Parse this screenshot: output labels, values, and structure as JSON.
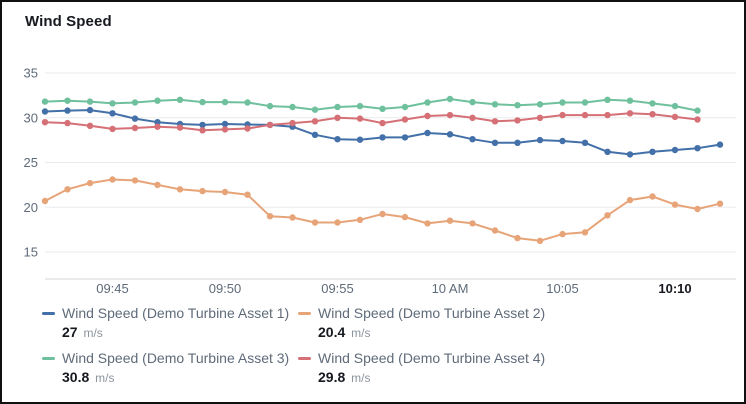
{
  "chart_data": {
    "type": "line",
    "title": "Wind Speed",
    "unit": "m/s",
    "x_start": "09:42",
    "x_interval_minutes": 1,
    "x_ticks": [
      {
        "label": "09:45",
        "minute_index": 3
      },
      {
        "label": "09:50",
        "minute_index": 8
      },
      {
        "label": "09:55",
        "minute_index": 13
      },
      {
        "label": "10 AM",
        "minute_index": 18
      },
      {
        "label": "10:05",
        "minute_index": 23
      },
      {
        "label": "10:10",
        "minute_index": 28
      }
    ],
    "bold_x_tick": "10:10",
    "y_ticks": [
      35,
      30,
      25,
      20,
      15
    ],
    "ylim": [
      13,
      36
    ],
    "grid": "horizontal-only",
    "legend_position": "bottom",
    "colors": {
      "grid": "#e9ebed",
      "axis": "#d1d5da",
      "tick_text": "#5f6b7a",
      "emphasis_text": "#16191f"
    },
    "series": [
      {
        "name": "Wind Speed (Demo Turbine Asset 1)",
        "color": "#4370a8",
        "display_value": "27",
        "values": [
          30.7,
          30.8,
          30.85,
          30.5,
          29.9,
          29.5,
          29.3,
          29.2,
          29.3,
          29.25,
          29.2,
          29.0,
          28.1,
          27.6,
          27.55,
          27.8,
          27.8,
          28.3,
          28.15,
          27.6,
          27.2,
          27.2,
          27.5,
          27.4,
          27.2,
          26.2,
          25.9,
          26.2,
          26.4,
          26.6,
          27.0
        ]
      },
      {
        "name": "Wind Speed (Demo Turbine Asset 2)",
        "color": "#e7a478",
        "display_value": "20.4",
        "values": [
          20.7,
          22.0,
          22.7,
          23.1,
          23.0,
          22.5,
          22.0,
          21.8,
          21.7,
          21.4,
          19.0,
          18.85,
          18.3,
          18.3,
          18.6,
          19.25,
          18.9,
          18.2,
          18.5,
          18.2,
          17.4,
          16.55,
          16.25,
          17.0,
          17.2,
          19.1,
          20.8,
          21.2,
          20.3,
          19.8,
          20.4
        ]
      },
      {
        "name": "Wind Speed (Demo Turbine Asset 3)",
        "color": "#6fc09c",
        "display_value": "30.8",
        "values": [
          31.8,
          31.9,
          31.8,
          31.6,
          31.7,
          31.9,
          32.0,
          31.75,
          31.75,
          31.7,
          31.3,
          31.2,
          30.9,
          31.2,
          31.3,
          31.0,
          31.2,
          31.7,
          32.1,
          31.75,
          31.5,
          31.4,
          31.5,
          31.7,
          31.7,
          32.0,
          31.9,
          31.6,
          31.3,
          30.8
        ]
      },
      {
        "name": "Wind Speed (Demo Turbine Asset 4)",
        "color": "#d57076",
        "display_value": "29.8",
        "values": [
          29.5,
          29.4,
          29.1,
          28.75,
          28.85,
          29.0,
          28.9,
          28.6,
          28.7,
          28.8,
          29.2,
          29.4,
          29.6,
          30.0,
          29.9,
          29.4,
          29.8,
          30.2,
          30.3,
          30.0,
          29.6,
          29.7,
          30.0,
          30.3,
          30.3,
          30.3,
          30.5,
          30.4,
          30.1,
          29.8
        ]
      }
    ]
  }
}
